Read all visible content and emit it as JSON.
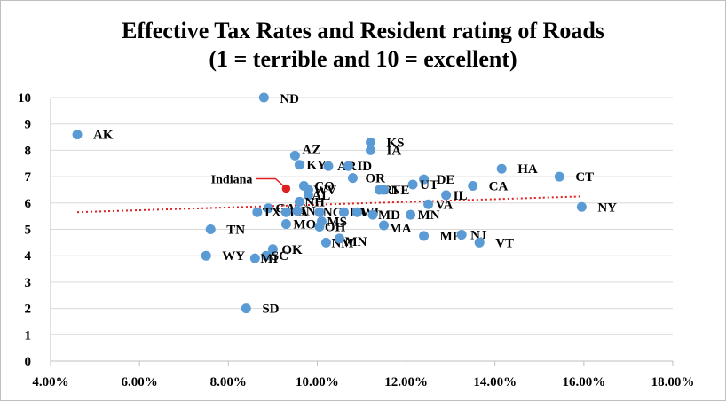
{
  "chart_data": {
    "type": "scatter",
    "title": "Effective Tax Rates and Resident rating of Roads",
    "subtitle": "(1 = terrible and 10 = excellent)",
    "xlabel": "",
    "ylabel": "",
    "xlim": [
      0.04,
      0.18
    ],
    "ylim": [
      0,
      10
    ],
    "x_ticks": [
      "4.00%",
      "6.00%",
      "8.00%",
      "10.00%",
      "12.00%",
      "14.00%",
      "16.00%",
      "18.00%"
    ],
    "y_ticks": [
      "0",
      "1",
      "2",
      "3",
      "4",
      "5",
      "6",
      "7",
      "8",
      "9",
      "10"
    ],
    "grid": true,
    "legend": "none",
    "marker_color": "#5B9BD5",
    "highlight_color": "#E02020",
    "trendline": {
      "style": "dotted",
      "color": "#E02020",
      "x": [
        0.046,
        0.1595
      ],
      "y": [
        5.65,
        6.25
      ]
    },
    "points": [
      {
        "label": "AK",
        "x": 0.046,
        "y": 8.6
      },
      {
        "label": "ND",
        "x": 0.088,
        "y": 10.0
      },
      {
        "label": "KS",
        "x": 0.112,
        "y": 8.3
      },
      {
        "label": "IA",
        "x": 0.112,
        "y": 8.0
      },
      {
        "label": "AZ",
        "x": 0.095,
        "y": 7.8
      },
      {
        "label": "KY",
        "x": 0.096,
        "y": 7.45
      },
      {
        "label": "AR",
        "x": 0.1025,
        "y": 7.4
      },
      {
        "label": "ID",
        "x": 0.107,
        "y": 7.4
      },
      {
        "label": "HA",
        "x": 0.1415,
        "y": 7.3
      },
      {
        "label": "CT",
        "x": 0.1545,
        "y": 7.0
      },
      {
        "label": "OR",
        "x": 0.108,
        "y": 6.95
      },
      {
        "label": "DE",
        "x": 0.124,
        "y": 6.9
      },
      {
        "label": "UT",
        "x": 0.1215,
        "y": 6.7
      },
      {
        "label": "CA",
        "x": 0.135,
        "y": 6.65
      },
      {
        "label": "CO",
        "x": 0.097,
        "y": 6.65
      },
      {
        "label": "RI",
        "x": 0.114,
        "y": 6.5
      },
      {
        "label": "NE",
        "x": 0.115,
        "y": 6.5
      },
      {
        "label": "WV",
        "x": 0.098,
        "y": 6.5
      },
      {
        "label": "IL",
        "x": 0.129,
        "y": 6.3
      },
      {
        "label": "AL",
        "x": 0.098,
        "y": 6.3
      },
      {
        "label": "NH",
        "x": 0.096,
        "y": 6.05
      },
      {
        "label": "VA",
        "x": 0.125,
        "y": 5.95
      },
      {
        "label": "NY",
        "x": 0.1595,
        "y": 5.85
      },
      {
        "label": "GA",
        "x": 0.089,
        "y": 5.8
      },
      {
        "label": "TX",
        "x": 0.0865,
        "y": 5.65
      },
      {
        "label": "LA",
        "x": 0.093,
        "y": 5.65
      },
      {
        "label": "IN",
        "x": 0.0955,
        "y": 5.7
      },
      {
        "label": "NC",
        "x": 0.1005,
        "y": 5.65
      },
      {
        "label": "PA",
        "x": 0.106,
        "y": 5.65
      },
      {
        "label": "WI",
        "x": 0.109,
        "y": 5.65
      },
      {
        "label": "MD",
        "x": 0.1125,
        "y": 5.55
      },
      {
        "label": "MN",
        "x": 0.121,
        "y": 5.55
      },
      {
        "label": "MS",
        "x": 0.101,
        "y": 5.3
      },
      {
        "label": "MO",
        "x": 0.093,
        "y": 5.2
      },
      {
        "label": "OH",
        "x": 0.1005,
        "y": 5.1
      },
      {
        "label": "MA",
        "x": 0.115,
        "y": 5.15
      },
      {
        "label": "TN",
        "x": 0.076,
        "y": 5.0
      },
      {
        "label": "ME",
        "x": 0.124,
        "y": 4.75
      },
      {
        "label": "NJ",
        "x": 0.1325,
        "y": 4.8
      },
      {
        "label": "NM",
        "x": 0.102,
        "y": 4.5
      },
      {
        "label": "MN",
        "x": 0.105,
        "y": 4.65
      },
      {
        "label": "VT",
        "x": 0.1365,
        "y": 4.5
      },
      {
        "label": "OK",
        "x": 0.09,
        "y": 4.25
      },
      {
        "label": "WY",
        "x": 0.075,
        "y": 4.0
      },
      {
        "label": "SC",
        "x": 0.0885,
        "y": 4.0
      },
      {
        "label": "MI",
        "x": 0.086,
        "y": 3.9
      },
      {
        "label": "SD",
        "x": 0.084,
        "y": 2.0
      },
      {
        "label": "",
        "x": 0.093,
        "y": 6.55,
        "highlight": true
      }
    ],
    "annotation": {
      "text": "Indiana",
      "x": 0.093,
      "y": 6.55
    }
  }
}
